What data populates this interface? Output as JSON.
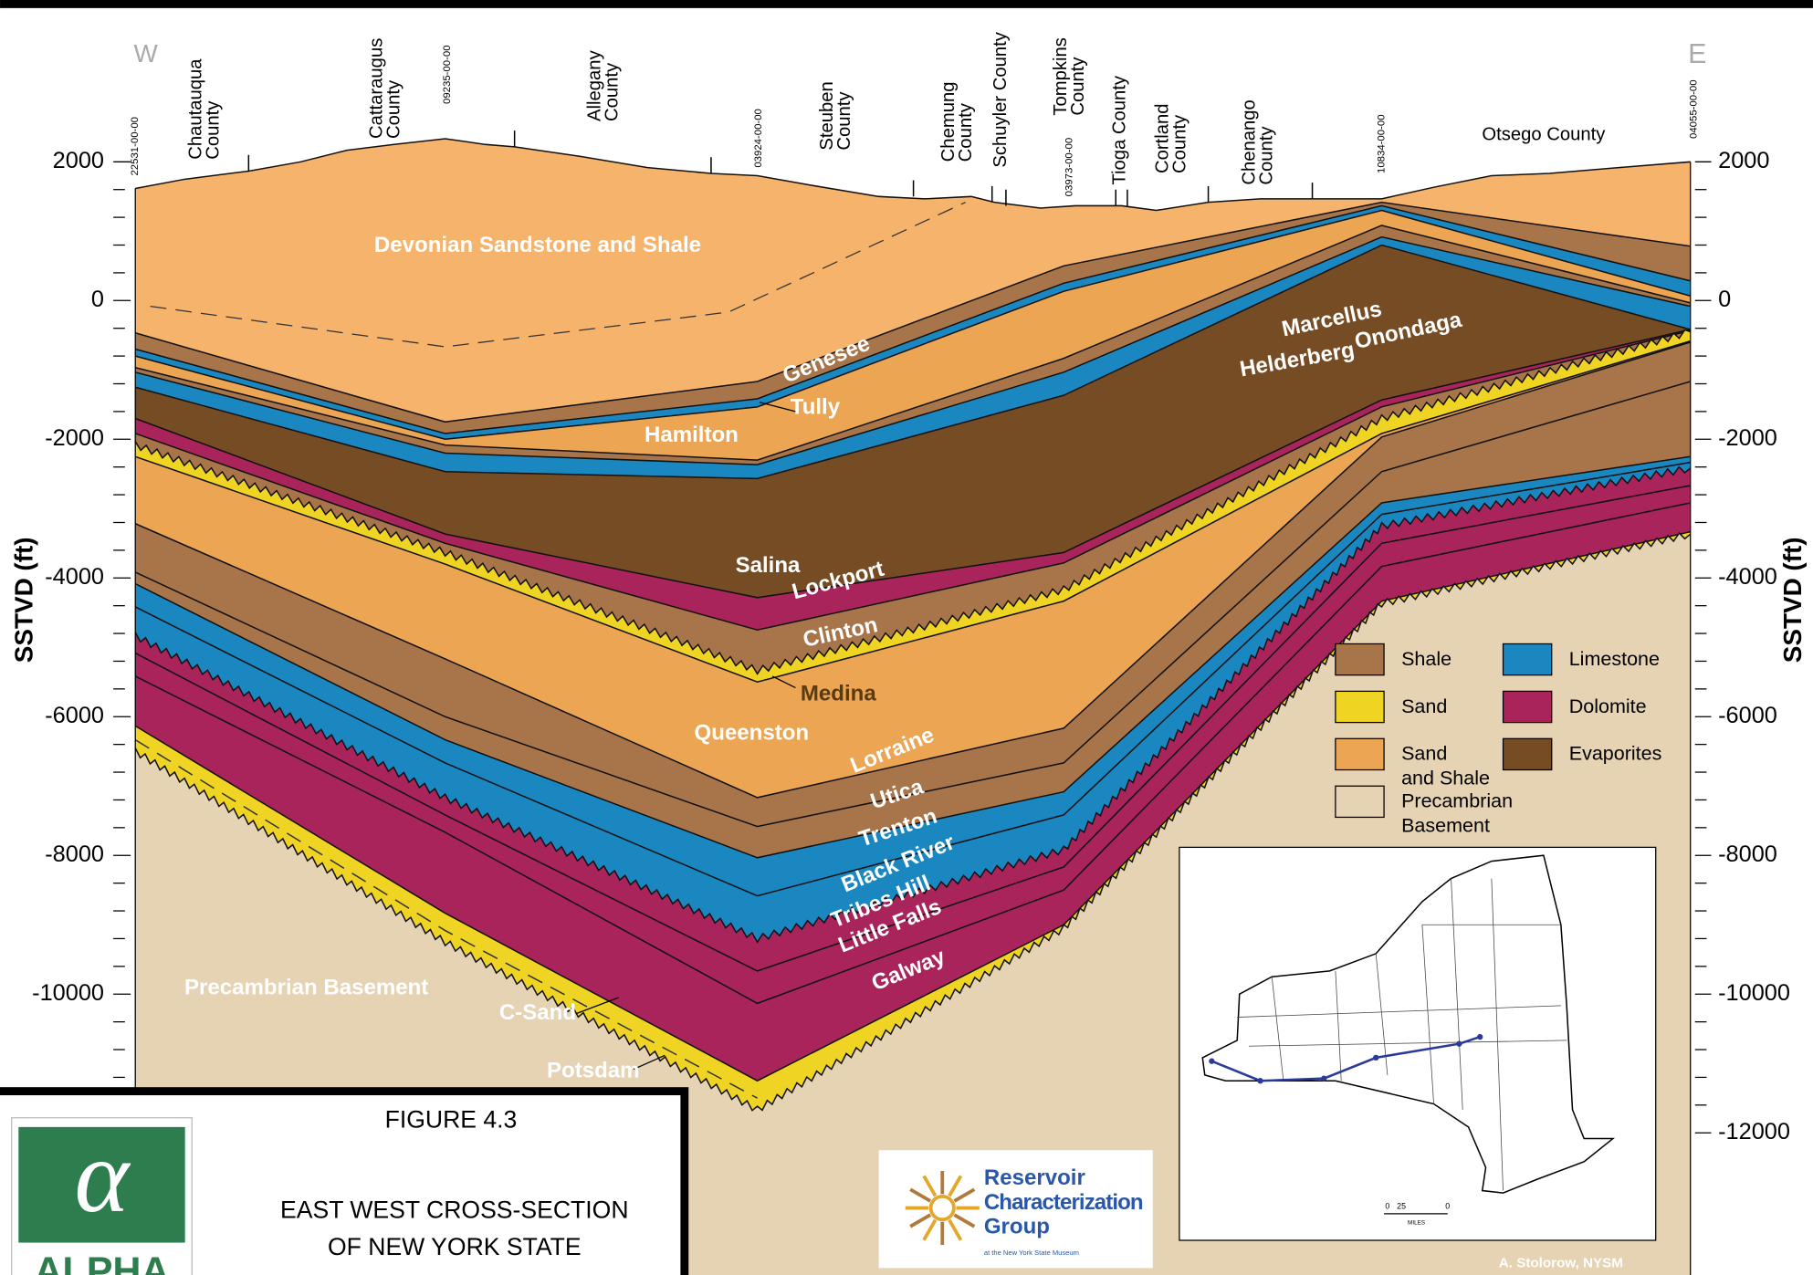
{
  "header": {
    "west": "W",
    "east": "E"
  },
  "counties": [
    {
      "lines": [
        "Chautauqua",
        "County"
      ]
    },
    {
      "lines": [
        "Cattaraugus",
        "County"
      ]
    },
    {
      "lines": [
        "Allegany",
        "County"
      ]
    },
    {
      "lines": [
        "Steuben",
        "County"
      ]
    },
    {
      "lines": [
        "Chemung",
        "County"
      ]
    },
    {
      "lines": [
        "Schuyler County"
      ]
    },
    {
      "lines": [
        "Tompkins",
        "County"
      ]
    },
    {
      "lines": [
        "Tioga County"
      ]
    },
    {
      "lines": [
        "Cortland",
        "County"
      ]
    },
    {
      "lines": [
        "Chenango",
        "County"
      ]
    },
    {
      "lines": [
        "Otsego County"
      ]
    }
  ],
  "wells": [
    "22531-00-00",
    "09235-00-00",
    "03924-00-00",
    "03973-00-00",
    "10834-00-00",
    "04055-00-00"
  ],
  "axis": {
    "label": "SSTVD (ft)",
    "left_ticks": [
      2000,
      0,
      -2000,
      -4000,
      -6000,
      -8000,
      -10000
    ],
    "right_ticks": [
      2000,
      0,
      -2000,
      -4000,
      -6000,
      -8000,
      -10000,
      -12000
    ]
  },
  "formations": [
    "Devonian Sandstone and Shale",
    "Genesee",
    "Tully",
    "Hamilton",
    "Marcellus",
    "Onondaga",
    "Helderberg",
    "Salina",
    "Lockport",
    "Clinton",
    "Medina",
    "Queenston",
    "Lorraine",
    "Utica",
    "Trenton",
    "Black River",
    "Tribes Hill",
    "Little Falls",
    "Galway",
    "Precambrian Basement",
    "C-Sand",
    "Potsdam"
  ],
  "legend": [
    {
      "lines": [
        "Shale"
      ]
    },
    {
      "lines": [
        "Limestone"
      ]
    },
    {
      "lines": [
        "Sand"
      ]
    },
    {
      "lines": [
        "Dolomite"
      ]
    },
    {
      "lines": [
        "Sand",
        "and Shale"
      ]
    },
    {
      "lines": [
        "Evaporites"
      ]
    },
    {
      "lines": [
        "Precambrian",
        "Basement"
      ]
    }
  ],
  "figure": {
    "number": "FIGURE 4.3",
    "title_lines": [
      "EAST WEST CROSS-SECTION",
      "OF NEW YORK STATE"
    ]
  },
  "logos": {
    "alpha": "ALPHA",
    "rcg_lines": [
      "Reservoir",
      "Characterization",
      "Group"
    ],
    "rcg_sub": "at the New York State Museum"
  },
  "map": {
    "scale_start": "0",
    "scale_end": "25",
    "scale_unit": "MILES"
  },
  "credit": "A. Stolorow, NYSM"
}
